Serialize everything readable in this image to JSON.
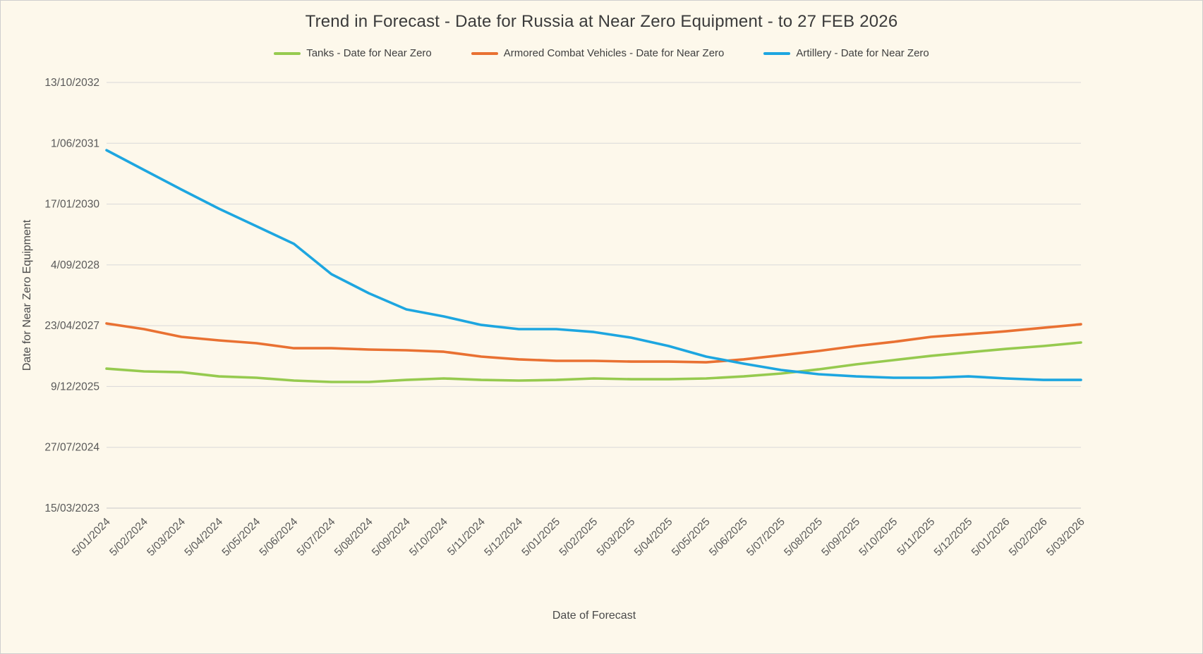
{
  "page": {
    "background": "#FDF8EB"
  },
  "chart_data": {
    "type": "line",
    "title": "Trend in Forecast - Date for Russia at Near Zero Equipment - to 27 FEB 2026",
    "xlabel": "Date of Forecast",
    "ylabel": "Date for Near Zero Equipment",
    "legend_position": "top",
    "grid": true,
    "x_categories": [
      "5/01/2024",
      "5/02/2024",
      "5/03/2024",
      "5/04/2024",
      "5/05/2024",
      "5/06/2024",
      "5/07/2024",
      "5/08/2024",
      "5/09/2024",
      "5/10/2024",
      "5/11/2024",
      "5/12/2024",
      "5/01/2025",
      "5/02/2025",
      "5/03/2025",
      "5/04/2025",
      "5/05/2025",
      "5/06/2025",
      "5/07/2025",
      "5/08/2025",
      "5/09/2025",
      "5/10/2025",
      "5/11/2025",
      "5/12/2025",
      "5/01/2026",
      "5/02/2026",
      "5/03/2026"
    ],
    "y_axis": {
      "tick_labels": [
        "15/03/2023",
        "27/07/2024",
        "9/12/2025",
        "23/04/2027",
        "4/09/2028",
        "17/01/2030",
        "1/06/2031",
        "13/10/2032"
      ],
      "tick_dates": [
        "2023-03-15",
        "2024-07-27",
        "2025-12-09",
        "2027-04-23",
        "2028-09-04",
        "2030-01-17",
        "2031-06-01",
        "2032-10-13"
      ],
      "tick_interval_days": 500
    },
    "series": [
      {
        "name": "Tanks - Date for Near Zero",
        "color": "#96CA4F",
        "values": [
          "2026-05-05",
          "2026-04-12",
          "2026-04-06",
          "2026-03-02",
          "2026-02-19",
          "2026-01-27",
          "2026-01-15",
          "2026-01-15",
          "2026-02-01",
          "2026-02-13",
          "2026-02-01",
          "2026-01-27",
          "2026-02-01",
          "2026-02-13",
          "2026-02-07",
          "2026-02-07",
          "2026-02-13",
          "2026-03-02",
          "2026-03-26",
          "2026-04-29",
          "2026-06-09",
          "2026-07-14",
          "2026-08-18",
          "2026-09-16",
          "2026-10-14",
          "2026-11-07",
          "2026-12-06"
        ]
      },
      {
        "name": "Armored Combat Vehicles - Date for Near Zero",
        "color": "#E97132",
        "values": [
          "2027-05-11",
          "2027-03-26",
          "2027-01-21",
          "2026-12-23",
          "2026-11-30",
          "2026-10-20",
          "2026-10-20",
          "2026-10-09",
          "2026-10-03",
          "2026-09-21",
          "2026-08-12",
          "2026-07-20",
          "2026-07-08",
          "2026-07-08",
          "2026-07-02",
          "2026-07-02",
          "2026-06-26",
          "2026-07-20",
          "2026-08-23",
          "2026-09-27",
          "2026-11-07",
          "2026-12-11",
          "2027-01-21",
          "2027-02-13",
          "2027-03-08",
          "2027-04-06",
          "2027-05-05"
        ]
      },
      {
        "name": "Artillery - Date for Near Zero",
        "color": "#1DA6E0",
        "values": [
          "2031-04-05",
          "2030-10-25",
          "2030-05-16",
          "2029-12-10",
          "2029-07-19",
          "2029-02-24",
          "2028-06-20",
          "2028-01-15",
          "2027-09-04",
          "2027-07-08",
          "2027-04-29",
          "2027-03-26",
          "2027-03-26",
          "2027-03-02",
          "2027-01-15",
          "2026-11-07",
          "2026-08-12",
          "2026-06-15",
          "2026-04-24",
          "2026-03-20",
          "2026-03-02",
          "2026-02-19",
          "2026-02-19",
          "2026-03-02",
          "2026-02-13",
          "2026-02-01",
          "2026-02-01"
        ]
      }
    ]
  }
}
